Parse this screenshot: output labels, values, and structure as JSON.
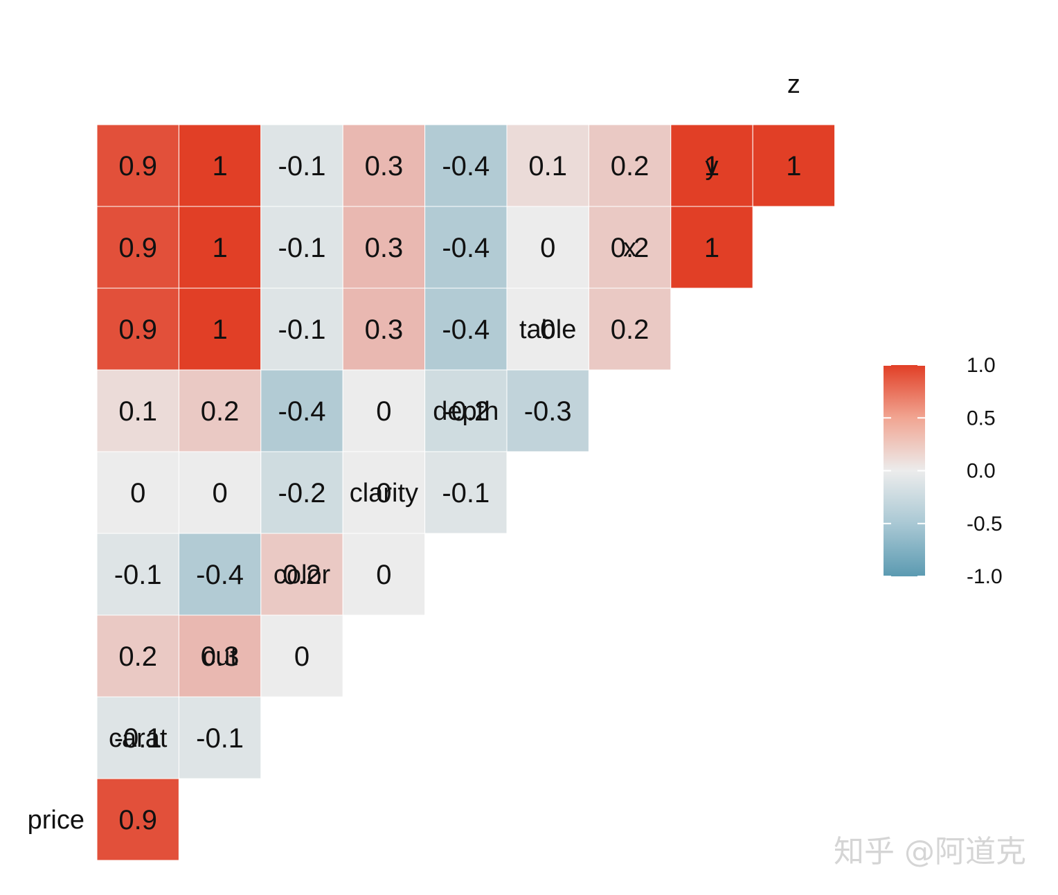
{
  "chart_data": {
    "type": "heatmap",
    "title": "",
    "variables": [
      "price",
      "carat",
      "cut",
      "color",
      "clarity",
      "depth",
      "table",
      "x",
      "y",
      "z"
    ],
    "matrix": [
      [],
      [
        0.9
      ],
      [
        -0.1,
        -0.1
      ],
      [
        0.2,
        0.3,
        0
      ],
      [
        -0.1,
        -0.4,
        0.2,
        0
      ],
      [
        0,
        0,
        -0.2,
        0,
        -0.1
      ],
      [
        0.1,
        0.2,
        -0.4,
        0,
        -0.2,
        -0.3
      ],
      [
        0.9,
        1,
        -0.1,
        0.3,
        -0.4,
        0,
        0.2
      ],
      [
        0.9,
        1,
        -0.1,
        0.3,
        -0.4,
        0,
        0.2,
        1
      ],
      [
        0.9,
        1,
        -0.1,
        0.3,
        -0.4,
        0.1,
        0.2,
        1,
        1
      ]
    ],
    "legend": {
      "position": "right",
      "ticks": [
        "1.0",
        "0.5",
        "0.0",
        "-0.5",
        "-1.0"
      ],
      "range": [
        -1,
        1
      ]
    },
    "colors": {
      "low": "#5b9ab1",
      "mid": "#ececec",
      "high": "#e13f26"
    }
  },
  "watermark": "知乎 @阿道克"
}
